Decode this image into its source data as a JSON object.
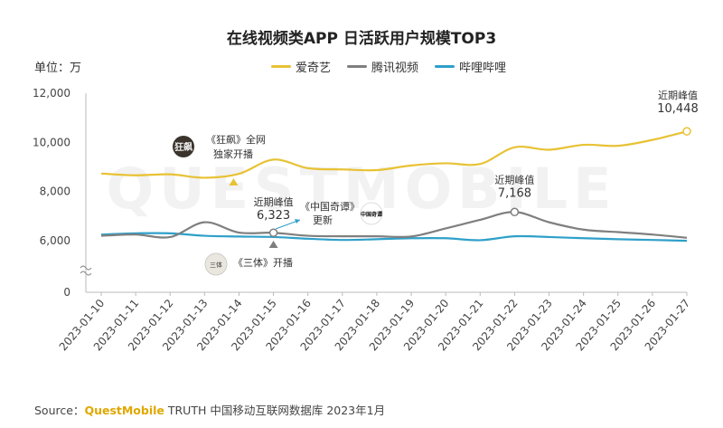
{
  "source": {
    "label": "Source：",
    "brand": "QuestMobile",
    "rest": " TRUTH 中国移动互联网数据库 2023年1月"
  },
  "chart_data": {
    "type": "line",
    "title": "在线视频类APP 日活跃用户规模TOP3",
    "unit": "单位：万",
    "ylim": [
      0,
      12000
    ],
    "y_ticks": [
      0,
      6000,
      8000,
      10000,
      12000
    ],
    "y_tick_labels": [
      "0",
      "6,000",
      "8,000",
      "10,000",
      "12,000"
    ],
    "axis_break": true,
    "legend_position": "top",
    "x": [
      "2023-01-10",
      "2023-01-11",
      "2023-01-12",
      "2023-01-13",
      "2023-01-14",
      "2023-01-15",
      "2023-01-16",
      "2023-01-17",
      "2023-01-18",
      "2023-01-19",
      "2023-01-20",
      "2023-01-21",
      "2023-01-22",
      "2023-01-23",
      "2023-01-24",
      "2023-01-25",
      "2023-01-26",
      "2023-01-27"
    ],
    "series": [
      {
        "name": "爱奇艺",
        "color": "#e8c235",
        "values": [
          8730,
          8660,
          8700,
          8560,
          8720,
          9300,
          8950,
          8900,
          8870,
          9060,
          9150,
          9120,
          9800,
          9700,
          9900,
          9860,
          10100,
          10448
        ]
      },
      {
        "name": "腾讯视频",
        "color": "#7f7f7f",
        "values": [
          6200,
          6250,
          6150,
          6750,
          6330,
          6323,
          6200,
          6180,
          6180,
          6170,
          6500,
          6850,
          7168,
          6750,
          6450,
          6350,
          6250,
          6120
        ]
      },
      {
        "name": "哔哩哔哩",
        "color": "#2fa0c9",
        "values": [
          6250,
          6300,
          6300,
          6200,
          6170,
          6150,
          6080,
          6030,
          6060,
          6100,
          6100,
          6020,
          6180,
          6150,
          6100,
          6060,
          6030,
          5990
        ]
      }
    ],
    "annotations": [
      {
        "id": "kuangbiao",
        "logo_text": "狂飙",
        "lines": [
          "《狂飙》全网",
          "独家开播"
        ],
        "x_index": 4,
        "marker_color": "#e8c235"
      },
      {
        "id": "santi",
        "logo_text": "三体",
        "lines": [
          "《三体》开播"
        ],
        "x_index": 5,
        "marker_color": "#7f7f7f"
      },
      {
        "id": "peak1",
        "lines": [
          "近期峰值"
        ],
        "value_label": "6,323",
        "series": 1,
        "x_index": 5
      },
      {
        "id": "qitan",
        "logo_text": "中国奇谭",
        "lines": [
          "《中国奇谭》",
          "更新"
        ],
        "x_index": 6
      },
      {
        "id": "peak2",
        "lines": [
          "近期峰值"
        ],
        "value_label": "7,168",
        "series": 1,
        "x_index": 12
      },
      {
        "id": "peak3",
        "lines": [
          "近期峰值"
        ],
        "value_label": "10,448",
        "series": 0,
        "x_index": 17
      }
    ],
    "watermark": "QUESTMOBILE"
  }
}
